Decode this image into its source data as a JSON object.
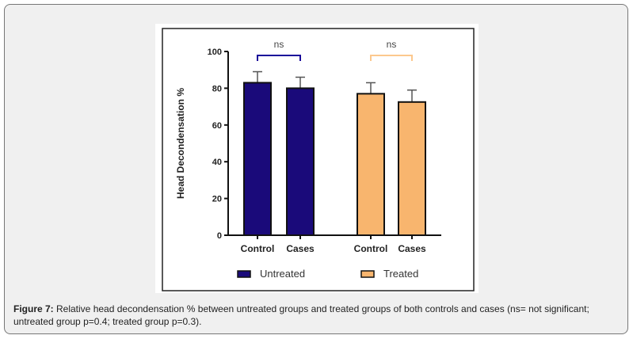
{
  "chart_data": {
    "type": "bar",
    "title": "",
    "xlabel": "",
    "ylabel": "Head Decondensation %",
    "ylim": [
      0,
      100
    ],
    "yticks": [
      "0",
      "20",
      "40",
      "60",
      "80",
      "100"
    ],
    "categories": [
      "Control",
      "Cases",
      "Control",
      "Cases"
    ],
    "bars": [
      {
        "group": "Untreated",
        "category": "Control",
        "value": 83,
        "error": 6
      },
      {
        "group": "Untreated",
        "category": "Cases",
        "value": 80,
        "error": 6
      },
      {
        "group": "Treated",
        "category": "Control",
        "value": 77,
        "error": 6
      },
      {
        "group": "Treated",
        "category": "Cases",
        "value": 72.5,
        "error": 6.5
      }
    ],
    "series": [
      {
        "name": "Untreated",
        "color": "#1a0a7a"
      },
      {
        "name": "Treated",
        "color": "#f8b56e"
      }
    ],
    "annotations": [
      {
        "text": "ns",
        "group": "Untreated",
        "color": "#1a0a9a"
      },
      {
        "text": "ns",
        "group": "Treated",
        "color": "#fcc88e"
      }
    ],
    "legend": [
      "Untreated",
      "Treated"
    ],
    "legend_position": "bottom"
  },
  "caption": {
    "label": "Figure 7:",
    "text": " Relative head decondensation % between untreated groups and treated groups of both controls and cases (ns= not significant; untreated group p=0.4; treated group p=0.3)."
  }
}
